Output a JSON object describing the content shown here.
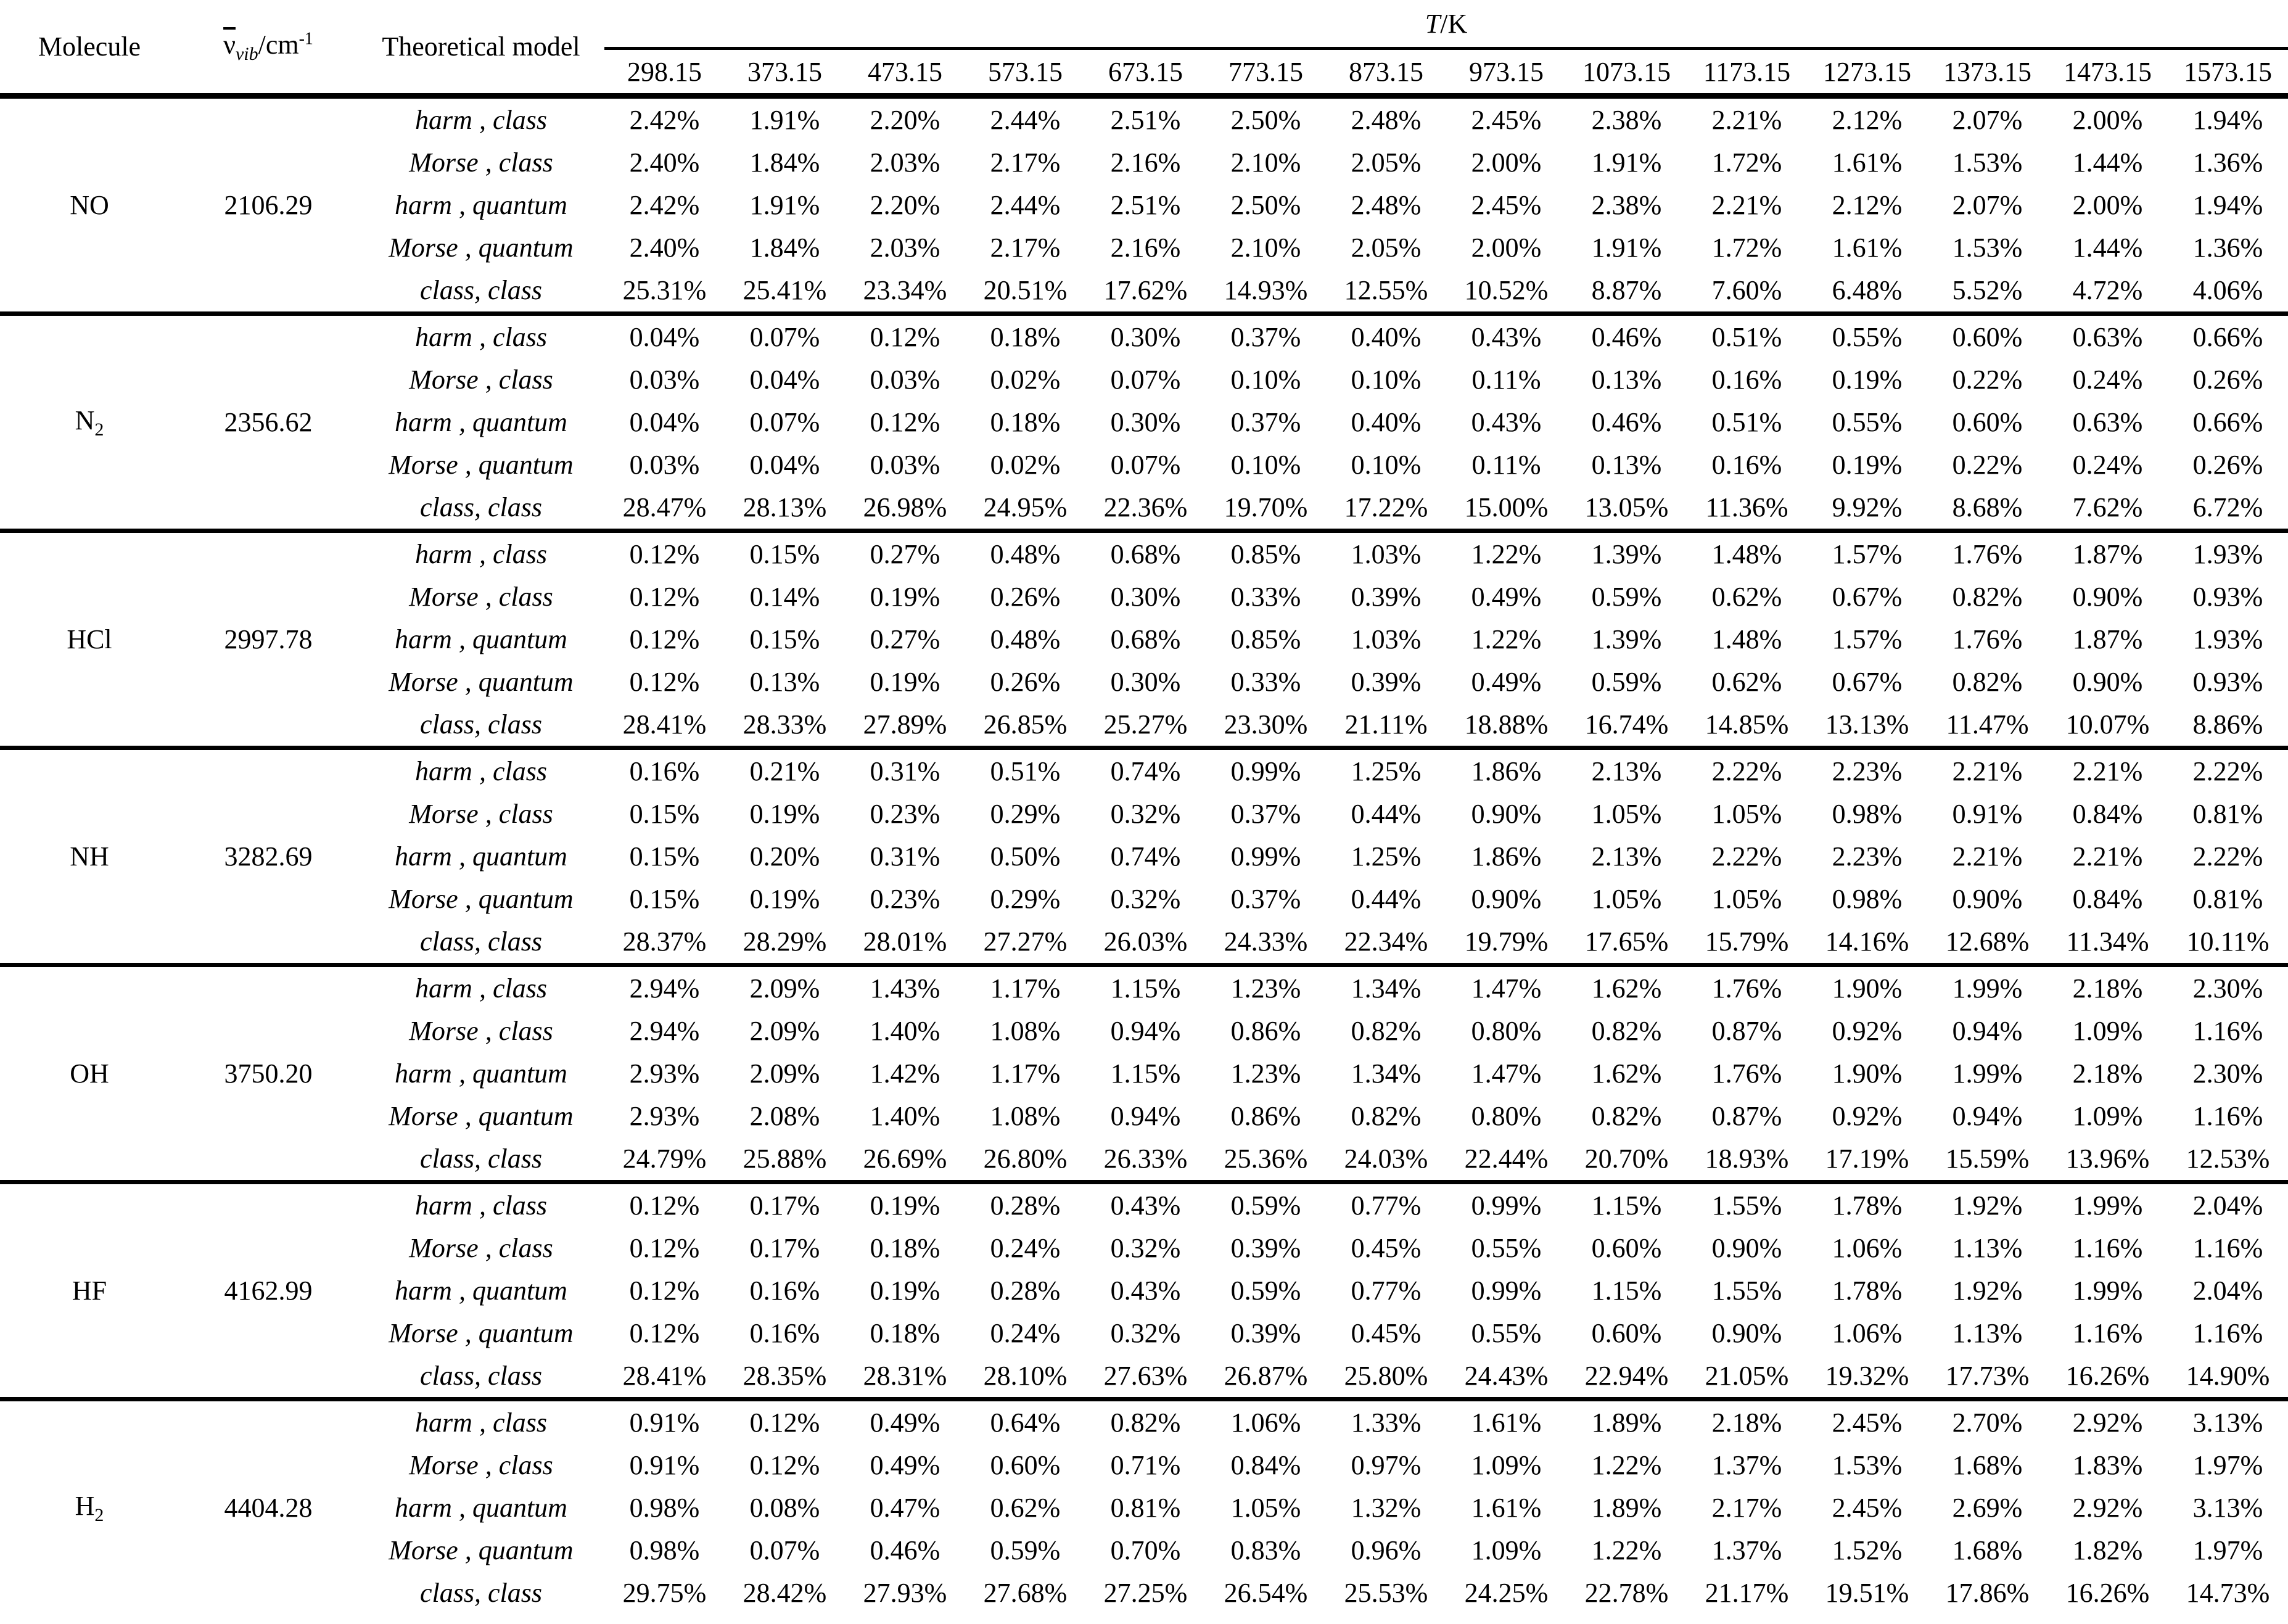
{
  "table": {
    "headers": {
      "molecule": "Molecule",
      "wavenumber_nu": "ν",
      "wavenumber_sub": "vib",
      "wavenumber_unit": "/cm",
      "wavenumber_sup": "-1",
      "model": "Theoretical model",
      "temperature_symbol": "T",
      "temperature_unit": "/K"
    },
    "temperatures": [
      "298.15",
      "373.15",
      "473.15",
      "573.15",
      "673.15",
      "773.15",
      "873.15",
      "973.15",
      "1073.15",
      "1173.15",
      "1273.15",
      "1373.15",
      "1473.15",
      "1573.15"
    ],
    "molecules": [
      {
        "name": "NO",
        "sub": "",
        "wavenumber": "2106.29",
        "rows": [
          {
            "model": "harm , class",
            "values": [
              "2.42%",
              "1.91%",
              "2.20%",
              "2.44%",
              "2.51%",
              "2.50%",
              "2.48%",
              "2.45%",
              "2.38%",
              "2.21%",
              "2.12%",
              "2.07%",
              "2.00%",
              "1.94%"
            ]
          },
          {
            "model": "Morse , class",
            "values": [
              "2.40%",
              "1.84%",
              "2.03%",
              "2.17%",
              "2.16%",
              "2.10%",
              "2.05%",
              "2.00%",
              "1.91%",
              "1.72%",
              "1.61%",
              "1.53%",
              "1.44%",
              "1.36%"
            ]
          },
          {
            "model": "harm , quantum",
            "values": [
              "2.42%",
              "1.91%",
              "2.20%",
              "2.44%",
              "2.51%",
              "2.50%",
              "2.48%",
              "2.45%",
              "2.38%",
              "2.21%",
              "2.12%",
              "2.07%",
              "2.00%",
              "1.94%"
            ]
          },
          {
            "model": "Morse , quantum",
            "values": [
              "2.40%",
              "1.84%",
              "2.03%",
              "2.17%",
              "2.16%",
              "2.10%",
              "2.05%",
              "2.00%",
              "1.91%",
              "1.72%",
              "1.61%",
              "1.53%",
              "1.44%",
              "1.36%"
            ]
          },
          {
            "model": "class, class",
            "values": [
              "25.31%",
              "25.41%",
              "23.34%",
              "20.51%",
              "17.62%",
              "14.93%",
              "12.55%",
              "10.52%",
              "8.87%",
              "7.60%",
              "6.48%",
              "5.52%",
              "4.72%",
              "4.06%"
            ]
          }
        ]
      },
      {
        "name": "N",
        "sub": "2",
        "wavenumber": "2356.62",
        "rows": [
          {
            "model": "harm , class",
            "values": [
              "0.04%",
              "0.07%",
              "0.12%",
              "0.18%",
              "0.30%",
              "0.37%",
              "0.40%",
              "0.43%",
              "0.46%",
              "0.51%",
              "0.55%",
              "0.60%",
              "0.63%",
              "0.66%"
            ]
          },
          {
            "model": "Morse , class",
            "values": [
              "0.03%",
              "0.04%",
              "0.03%",
              "0.02%",
              "0.07%",
              "0.10%",
              "0.10%",
              "0.11%",
              "0.13%",
              "0.16%",
              "0.19%",
              "0.22%",
              "0.24%",
              "0.26%"
            ]
          },
          {
            "model": "harm , quantum",
            "values": [
              "0.04%",
              "0.07%",
              "0.12%",
              "0.18%",
              "0.30%",
              "0.37%",
              "0.40%",
              "0.43%",
              "0.46%",
              "0.51%",
              "0.55%",
              "0.60%",
              "0.63%",
              "0.66%"
            ]
          },
          {
            "model": "Morse , quantum",
            "values": [
              "0.03%",
              "0.04%",
              "0.03%",
              "0.02%",
              "0.07%",
              "0.10%",
              "0.10%",
              "0.11%",
              "0.13%",
              "0.16%",
              "0.19%",
              "0.22%",
              "0.24%",
              "0.26%"
            ]
          },
          {
            "model": "class, class",
            "values": [
              "28.47%",
              "28.13%",
              "26.98%",
              "24.95%",
              "22.36%",
              "19.70%",
              "17.22%",
              "15.00%",
              "13.05%",
              "11.36%",
              "9.92%",
              "8.68%",
              "7.62%",
              "6.72%"
            ]
          }
        ]
      },
      {
        "name": "HCl",
        "sub": "",
        "wavenumber": "2997.78",
        "rows": [
          {
            "model": "harm , class",
            "values": [
              "0.12%",
              "0.15%",
              "0.27%",
              "0.48%",
              "0.68%",
              "0.85%",
              "1.03%",
              "1.22%",
              "1.39%",
              "1.48%",
              "1.57%",
              "1.76%",
              "1.87%",
              "1.93%"
            ]
          },
          {
            "model": "Morse , class",
            "values": [
              "0.12%",
              "0.14%",
              "0.19%",
              "0.26%",
              "0.30%",
              "0.33%",
              "0.39%",
              "0.49%",
              "0.59%",
              "0.62%",
              "0.67%",
              "0.82%",
              "0.90%",
              "0.93%"
            ]
          },
          {
            "model": "harm , quantum",
            "values": [
              "0.12%",
              "0.15%",
              "0.27%",
              "0.48%",
              "0.68%",
              "0.85%",
              "1.03%",
              "1.22%",
              "1.39%",
              "1.48%",
              "1.57%",
              "1.76%",
              "1.87%",
              "1.93%"
            ]
          },
          {
            "model": "Morse , quantum",
            "values": [
              "0.12%",
              "0.13%",
              "0.19%",
              "0.26%",
              "0.30%",
              "0.33%",
              "0.39%",
              "0.49%",
              "0.59%",
              "0.62%",
              "0.67%",
              "0.82%",
              "0.90%",
              "0.93%"
            ]
          },
          {
            "model": "class, class",
            "values": [
              "28.41%",
              "28.33%",
              "27.89%",
              "26.85%",
              "25.27%",
              "23.30%",
              "21.11%",
              "18.88%",
              "16.74%",
              "14.85%",
              "13.13%",
              "11.47%",
              "10.07%",
              "8.86%"
            ]
          }
        ]
      },
      {
        "name": "NH",
        "sub": "",
        "wavenumber": "3282.69",
        "rows": [
          {
            "model": "harm , class",
            "values": [
              "0.16%",
              "0.21%",
              "0.31%",
              "0.51%",
              "0.74%",
              "0.99%",
              "1.25%",
              "1.86%",
              "2.13%",
              "2.22%",
              "2.23%",
              "2.21%",
              "2.21%",
              "2.22%"
            ]
          },
          {
            "model": "Morse , class",
            "values": [
              "0.15%",
              "0.19%",
              "0.23%",
              "0.29%",
              "0.32%",
              "0.37%",
              "0.44%",
              "0.90%",
              "1.05%",
              "1.05%",
              "0.98%",
              "0.91%",
              "0.84%",
              "0.81%"
            ]
          },
          {
            "model": "harm , quantum",
            "values": [
              "0.15%",
              "0.20%",
              "0.31%",
              "0.50%",
              "0.74%",
              "0.99%",
              "1.25%",
              "1.86%",
              "2.13%",
              "2.22%",
              "2.23%",
              "2.21%",
              "2.21%",
              "2.22%"
            ]
          },
          {
            "model": "Morse , quantum",
            "values": [
              "0.15%",
              "0.19%",
              "0.23%",
              "0.29%",
              "0.32%",
              "0.37%",
              "0.44%",
              "0.90%",
              "1.05%",
              "1.05%",
              "0.98%",
              "0.90%",
              "0.84%",
              "0.81%"
            ]
          },
          {
            "model": "class, class",
            "values": [
              "28.37%",
              "28.29%",
              "28.01%",
              "27.27%",
              "26.03%",
              "24.33%",
              "22.34%",
              "19.79%",
              "17.65%",
              "15.79%",
              "14.16%",
              "12.68%",
              "11.34%",
              "10.11%"
            ]
          }
        ]
      },
      {
        "name": "OH",
        "sub": "",
        "wavenumber": "3750.20",
        "rows": [
          {
            "model": "harm , class",
            "values": [
              "2.94%",
              "2.09%",
              "1.43%",
              "1.17%",
              "1.15%",
              "1.23%",
              "1.34%",
              "1.47%",
              "1.62%",
              "1.76%",
              "1.90%",
              "1.99%",
              "2.18%",
              "2.30%"
            ]
          },
          {
            "model": "Morse , class",
            "values": [
              "2.94%",
              "2.09%",
              "1.40%",
              "1.08%",
              "0.94%",
              "0.86%",
              "0.82%",
              "0.80%",
              "0.82%",
              "0.87%",
              "0.92%",
              "0.94%",
              "1.09%",
              "1.16%"
            ]
          },
          {
            "model": "harm , quantum",
            "values": [
              "2.93%",
              "2.09%",
              "1.42%",
              "1.17%",
              "1.15%",
              "1.23%",
              "1.34%",
              "1.47%",
              "1.62%",
              "1.76%",
              "1.90%",
              "1.99%",
              "2.18%",
              "2.30%"
            ]
          },
          {
            "model": "Morse , quantum",
            "values": [
              "2.93%",
              "2.08%",
              "1.40%",
              "1.08%",
              "0.94%",
              "0.86%",
              "0.82%",
              "0.80%",
              "0.82%",
              "0.87%",
              "0.92%",
              "0.94%",
              "1.09%",
              "1.16%"
            ]
          },
          {
            "model": "class, class",
            "values": [
              "24.79%",
              "25.88%",
              "26.69%",
              "26.80%",
              "26.33%",
              "25.36%",
              "24.03%",
              "22.44%",
              "20.70%",
              "18.93%",
              "17.19%",
              "15.59%",
              "13.96%",
              "12.53%"
            ]
          }
        ]
      },
      {
        "name": "HF",
        "sub": "",
        "wavenumber": "4162.99",
        "rows": [
          {
            "model": "harm , class",
            "values": [
              "0.12%",
              "0.17%",
              "0.19%",
              "0.28%",
              "0.43%",
              "0.59%",
              "0.77%",
              "0.99%",
              "1.15%",
              "1.55%",
              "1.78%",
              "1.92%",
              "1.99%",
              "2.04%"
            ]
          },
          {
            "model": "Morse , class",
            "values": [
              "0.12%",
              "0.17%",
              "0.18%",
              "0.24%",
              "0.32%",
              "0.39%",
              "0.45%",
              "0.55%",
              "0.60%",
              "0.90%",
              "1.06%",
              "1.13%",
              "1.16%",
              "1.16%"
            ]
          },
          {
            "model": "harm , quantum",
            "values": [
              "0.12%",
              "0.16%",
              "0.19%",
              "0.28%",
              "0.43%",
              "0.59%",
              "0.77%",
              "0.99%",
              "1.15%",
              "1.55%",
              "1.78%",
              "1.92%",
              "1.99%",
              "2.04%"
            ]
          },
          {
            "model": "Morse , quantum",
            "values": [
              "0.12%",
              "0.16%",
              "0.18%",
              "0.24%",
              "0.32%",
              "0.39%",
              "0.45%",
              "0.55%",
              "0.60%",
              "0.90%",
              "1.06%",
              "1.13%",
              "1.16%",
              "1.16%"
            ]
          },
          {
            "model": "class, class",
            "values": [
              "28.41%",
              "28.35%",
              "28.31%",
              "28.10%",
              "27.63%",
              "26.87%",
              "25.80%",
              "24.43%",
              "22.94%",
              "21.05%",
              "19.32%",
              "17.73%",
              "16.26%",
              "14.90%"
            ]
          }
        ]
      },
      {
        "name": "H",
        "sub": "2",
        "wavenumber": "4404.28",
        "rows": [
          {
            "model": "harm , class",
            "values": [
              "0.91%",
              "0.12%",
              "0.49%",
              "0.64%",
              "0.82%",
              "1.06%",
              "1.33%",
              "1.61%",
              "1.89%",
              "2.18%",
              "2.45%",
              "2.70%",
              "2.92%",
              "3.13%"
            ]
          },
          {
            "model": "Morse , class",
            "values": [
              "0.91%",
              "0.12%",
              "0.49%",
              "0.60%",
              "0.71%",
              "0.84%",
              "0.97%",
              "1.09%",
              "1.22%",
              "1.37%",
              "1.53%",
              "1.68%",
              "1.83%",
              "1.97%"
            ]
          },
          {
            "model": "harm , quantum",
            "values": [
              "0.98%",
              "0.08%",
              "0.47%",
              "0.62%",
              "0.81%",
              "1.05%",
              "1.32%",
              "1.61%",
              "1.89%",
              "2.17%",
              "2.45%",
              "2.69%",
              "2.92%",
              "3.13%"
            ]
          },
          {
            "model": "Morse , quantum",
            "values": [
              "0.98%",
              "0.07%",
              "0.46%",
              "0.59%",
              "0.70%",
              "0.83%",
              "0.96%",
              "1.09%",
              "1.22%",
              "1.37%",
              "1.52%",
              "1.68%",
              "1.82%",
              "1.97%"
            ]
          },
          {
            "model": "class, class",
            "values": [
              "29.75%",
              "28.42%",
              "27.93%",
              "27.68%",
              "27.25%",
              "26.54%",
              "25.53%",
              "24.25%",
              "22.78%",
              "21.17%",
              "19.51%",
              "17.86%",
              "16.26%",
              "14.73%"
            ]
          }
        ]
      }
    ]
  }
}
